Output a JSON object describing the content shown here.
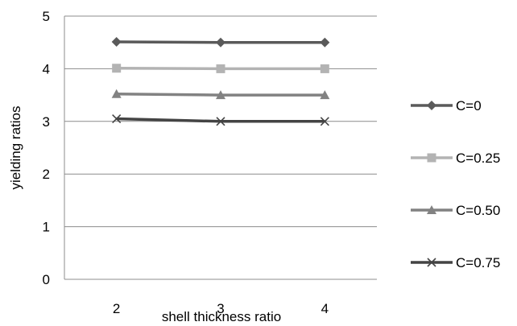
{
  "chart_data": {
    "type": "line",
    "title": "",
    "xlabel": "shell thickness ratio",
    "ylabel": "yielding ratios",
    "x": [
      2,
      3,
      4
    ],
    "ylim": [
      0,
      5
    ],
    "yticks": [
      0,
      1,
      2,
      3,
      4,
      5
    ],
    "grid": "horizontal",
    "legend_position": "right",
    "series": [
      {
        "name": "C=0",
        "values": [
          4.51,
          4.5,
          4.5
        ],
        "color": "#5a5a5a",
        "marker": "diamond"
      },
      {
        "name": "C=0.25",
        "values": [
          4.01,
          4.0,
          4.0
        ],
        "color": "#b3b3b3",
        "marker": "square"
      },
      {
        "name": "C=0.50",
        "values": [
          3.52,
          3.5,
          3.5
        ],
        "color": "#828282",
        "marker": "triangle"
      },
      {
        "name": "C=0.75",
        "values": [
          3.05,
          3.0,
          3.0
        ],
        "color": "#444444",
        "marker": "x"
      }
    ]
  }
}
